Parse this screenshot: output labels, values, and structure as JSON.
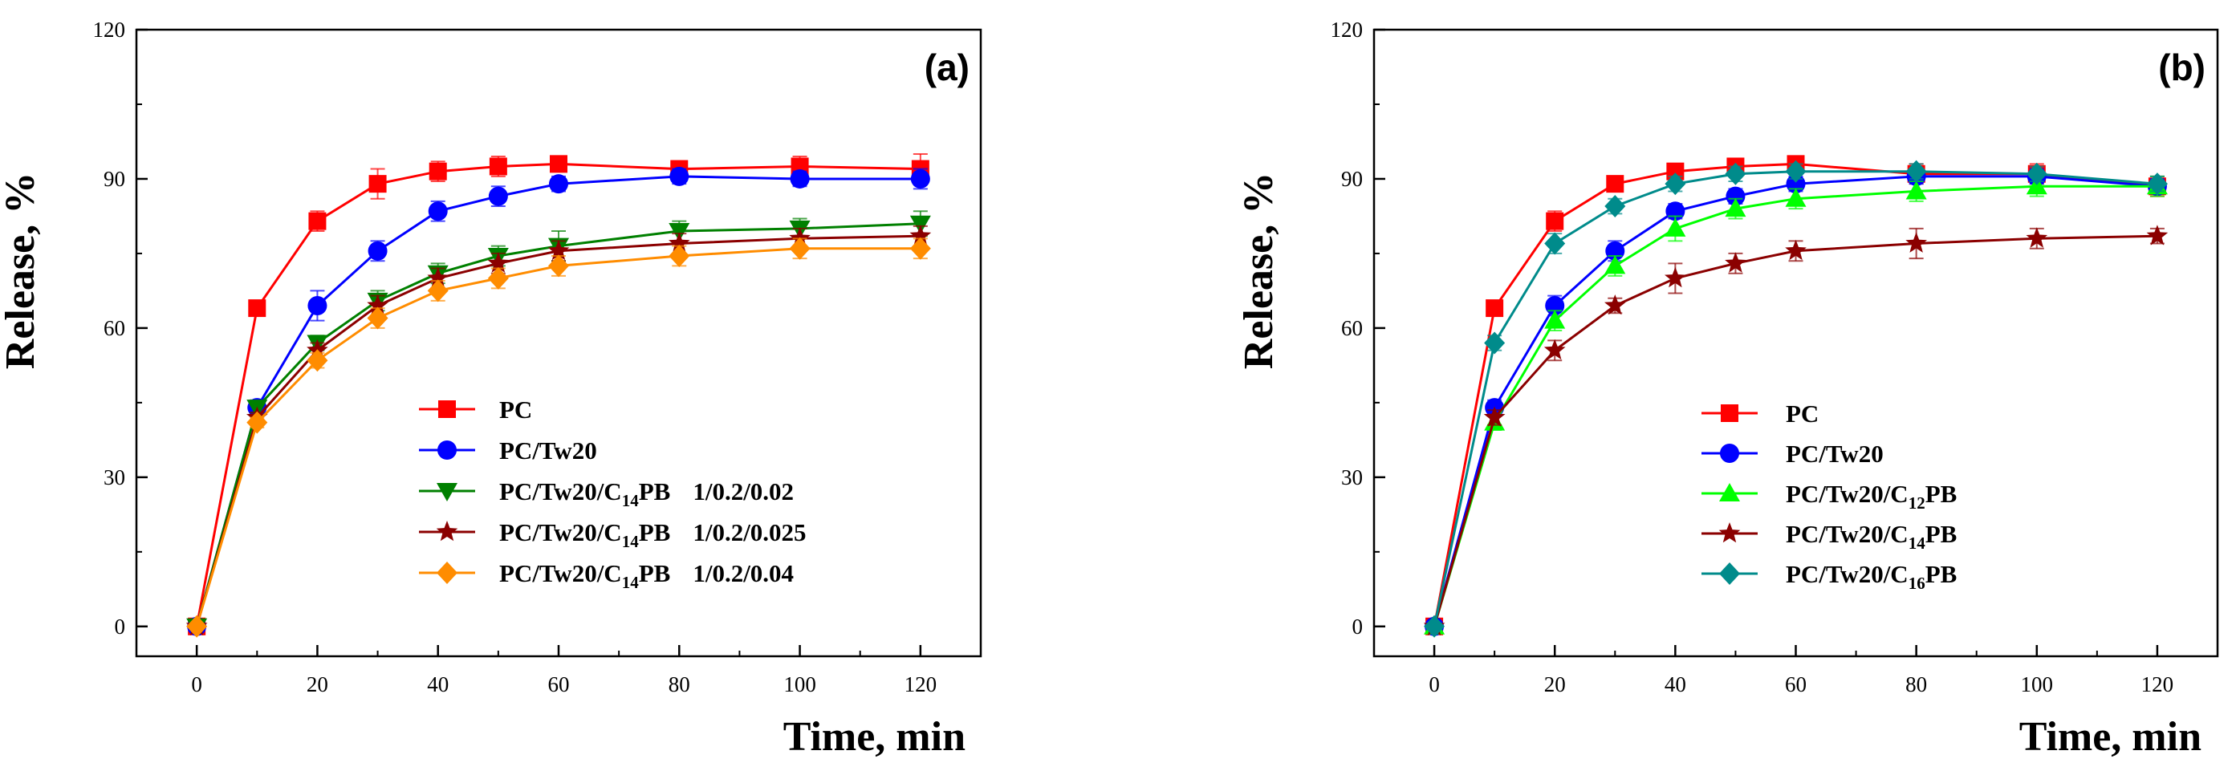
{
  "chart_data": [
    {
      "type": "line",
      "panel_label": "(a)",
      "xlabel": "Time, min",
      "ylabel": "Release, %",
      "xlim": [
        -10,
        130
      ],
      "ylim": [
        -6,
        120
      ],
      "xticks": [
        0,
        20,
        40,
        60,
        80,
        100,
        120
      ],
      "yticks": [
        0,
        30,
        60,
        90,
        120
      ],
      "legend_position": "lower-center",
      "x": [
        0,
        10,
        20,
        30,
        40,
        50,
        60,
        80,
        100,
        120
      ],
      "series": [
        {
          "name": "PC",
          "color": "#ff0000",
          "marker": "square",
          "values": [
            0,
            64,
            81.5,
            89,
            91.5,
            92.5,
            93,
            92,
            92.5,
            92
          ],
          "errors": [
            0,
            1.5,
            2,
            3,
            2,
            2,
            1.5,
            1.5,
            2,
            3
          ]
        },
        {
          "name": "PC/Tw20",
          "color": "#0000ff",
          "marker": "circle",
          "values": [
            0,
            44,
            64.5,
            75.5,
            83.5,
            86.5,
            89,
            90.5,
            90,
            90
          ],
          "errors": [
            0,
            1.5,
            3,
            2,
            2,
            2,
            1.5,
            1.5,
            1.5,
            2
          ]
        },
        {
          "name": "PC/Tw20/C14PB 1/0.2/0.02",
          "label_parts": [
            "PC/Tw20/C",
            "14",
            "PB",
            "1/0.2/0.02"
          ],
          "color": "#008000",
          "marker": "triangle-down",
          "values": [
            0,
            44,
            57,
            65.5,
            71,
            74.5,
            76.5,
            79.5,
            80,
            81
          ],
          "errors": [
            0,
            1,
            1.5,
            2,
            2,
            2,
            3,
            2,
            2,
            2.5
          ]
        },
        {
          "name": "PC/Tw20/C14PB 1/0.2/0.025",
          "label_parts": [
            "PC/Tw20/C",
            "14",
            "PB",
            "1/0.2/0.025"
          ],
          "color": "#8b0000",
          "marker": "star",
          "values": [
            0,
            42,
            55.5,
            64.5,
            70,
            73,
            75.5,
            77,
            78,
            78.5
          ],
          "errors": [
            0,
            1,
            1.5,
            2,
            2,
            2,
            2,
            2,
            2,
            2
          ]
        },
        {
          "name": "PC/Tw20/C14PB 1/0.2/0.04",
          "label_parts": [
            "PC/Tw20/C",
            "14",
            "PB",
            "1/0.2/0.04"
          ],
          "color": "#ff8c00",
          "marker": "diamond",
          "values": [
            0,
            41,
            53.5,
            62,
            67.5,
            70,
            72.5,
            74.5,
            76,
            76
          ],
          "errors": [
            0,
            1,
            1.5,
            2,
            2,
            2,
            2,
            2,
            2,
            2
          ]
        }
      ]
    },
    {
      "type": "line",
      "panel_label": "(b)",
      "xlabel": "Time, min",
      "ylabel": "Release, %",
      "xlim": [
        -10,
        130
      ],
      "ylim": [
        -6,
        120
      ],
      "xticks": [
        0,
        20,
        40,
        60,
        80,
        100,
        120
      ],
      "yticks": [
        0,
        30,
        60,
        90,
        120
      ],
      "legend_position": "lower-center",
      "x": [
        0,
        10,
        20,
        30,
        40,
        50,
        60,
        80,
        100,
        120
      ],
      "series": [
        {
          "name": "PC",
          "color": "#ff0000",
          "marker": "square",
          "values": [
            0,
            64,
            81.5,
            89,
            91.5,
            92.5,
            93,
            91,
            91,
            88.5
          ],
          "errors": [
            0,
            1.5,
            2,
            1.5,
            1.5,
            1.5,
            1.5,
            2,
            2,
            2
          ]
        },
        {
          "name": "PC/Tw20",
          "color": "#0000ff",
          "marker": "circle",
          "values": [
            0,
            44,
            64.5,
            75.5,
            83.5,
            86.5,
            89,
            90.5,
            90.5,
            88.5
          ],
          "errors": [
            0,
            1.5,
            2,
            2,
            1.5,
            1.5,
            1.5,
            1.5,
            1.5,
            1.5
          ]
        },
        {
          "name": "PC/Tw20/C12PB",
          "label_parts": [
            "PC/Tw20/C",
            "12",
            "PB",
            ""
          ],
          "color": "#00ff00",
          "marker": "triangle-up",
          "values": [
            0,
            41,
            61.5,
            72.5,
            80,
            84,
            86,
            87.5,
            88.5,
            88.5
          ],
          "errors": [
            0,
            1.5,
            2,
            2,
            2.5,
            2,
            2,
            2,
            2,
            2
          ]
        },
        {
          "name": "PC/Tw20/C14PB",
          "label_parts": [
            "PC/Tw20/C",
            "14",
            "PB",
            ""
          ],
          "color": "#8b0000",
          "marker": "star",
          "values": [
            0,
            42,
            55.5,
            64.5,
            70,
            73,
            75.5,
            77,
            78,
            78.5
          ],
          "errors": [
            0,
            1.5,
            2,
            1.5,
            3,
            2,
            2,
            3,
            2,
            1.5
          ]
        },
        {
          "name": "PC/Tw20/C16PB",
          "label_parts": [
            "PC/Tw20/C",
            "16",
            "PB",
            ""
          ],
          "color": "#008b8b",
          "marker": "diamond",
          "values": [
            0,
            57,
            77,
            84.5,
            89,
            91,
            91.5,
            91.5,
            91,
            89
          ],
          "errors": [
            0,
            1.5,
            2,
            1.5,
            1.5,
            1.5,
            1.5,
            1.5,
            1.5,
            1.5
          ]
        }
      ]
    }
  ]
}
